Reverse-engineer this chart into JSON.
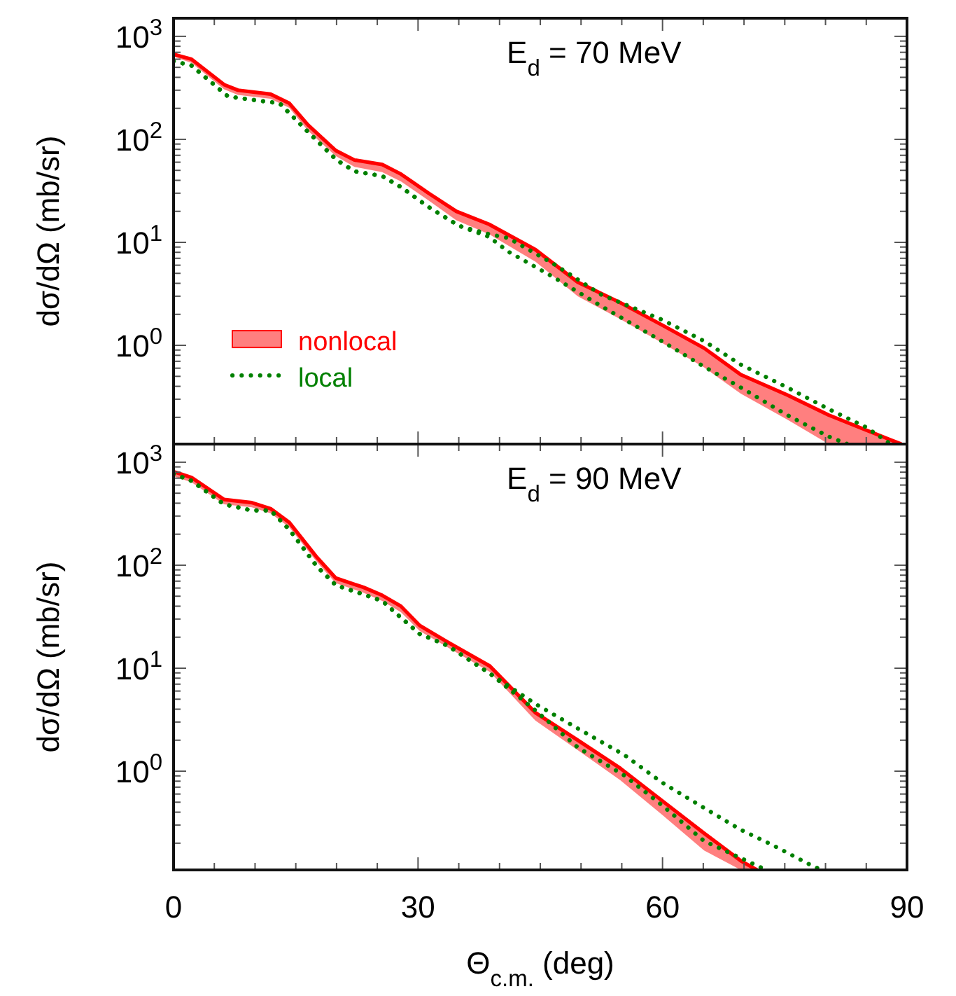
{
  "chart_data": [
    {
      "type": "line",
      "annotations": [
        "E$_{d}$ = 70 MeV"
      ],
      "ylabel": "dσ/dΩ  (mb/sr)",
      "log": true,
      "legend": "left",
      "tick_labels": "y",
      "xlim": [
        0,
        90
      ],
      "xticks": [
        0,
        {
          "value": 5,
          "label": null
        },
        {
          "value": 10,
          "label": null
        },
        {
          "value": 15,
          "label": null
        },
        {
          "value": 20,
          "label": null
        },
        {
          "value": 25,
          "label": null
        },
        30,
        {
          "value": 35,
          "label": null
        },
        {
          "value": 40,
          "label": null
        },
        {
          "value": 45,
          "label": null
        },
        {
          "value": 50,
          "label": null
        },
        {
          "value": 55,
          "label": null
        },
        60,
        {
          "value": 65,
          "label": null
        },
        {
          "value": 70,
          "label": null
        },
        {
          "value": 75,
          "label": null
        },
        {
          "value": 80,
          "label": null
        },
        {
          "value": 85,
          "label": null
        },
        90
      ],
      "ylim": [
        0.11,
        1500
      ],
      "yticks": [
        {
          "value": 1,
          "label": "10$^{0}$"
        },
        {
          "value": 10,
          "label": "10$^{1}$"
        },
        {
          "value": 100,
          "label": "10$^{2}$"
        },
        {
          "value": 1000,
          "label": "10$^{3}$"
        }
      ],
      "series": [
        {
          "name": "nonlocal",
          "color": "#ff0000",
          "line_style": "solid",
          "x": [
            0,
            2.2,
            6.2,
            7.9,
            11.9,
            14.2,
            16.5,
            19.9,
            22.2,
            25.6,
            27.9,
            31.3,
            34.7,
            38.7,
            44.4,
            49.6,
            54.8,
            59.9,
            65.1,
            69.6,
            75.3,
            80.4,
            85,
            89.3
          ],
          "values": [
            670,
            600,
            340,
            300,
            275,
            224,
            138,
            78,
            63,
            57,
            46,
            30,
            20,
            15,
            8.5,
            4.1,
            2.6,
            1.58,
            0.94,
            0.52,
            0.33,
            0.21,
            0.15,
            0.11
          ],
          "lower": [
            636,
            552,
            306,
            270,
            248,
            202,
            121,
            69,
            54,
            48,
            39,
            25.5,
            16.4,
            12,
            6.5,
            3.0,
            1.8,
            1.06,
            0.61,
            0.34,
            0.19,
            0.11,
            0.11,
            0.11
          ],
          "upper": [
            670,
            600,
            340,
            300,
            275,
            224,
            138,
            78,
            63,
            57,
            46,
            30,
            20,
            15,
            8.5,
            4.1,
            2.6,
            1.58,
            0.94,
            0.52,
            0.33,
            0.21,
            0.15,
            0.11
          ]
        },
        {
          "name": "local",
          "color": "#008000",
          "line_style": "dotted",
          "x": [
            0,
            2.2,
            6.7,
            10,
            13,
            16.5,
            20,
            22.2,
            25.6,
            28,
            31.3,
            35,
            38.7,
            41.1,
            46.6,
            52.5,
            59.9,
            65.1,
            69.6,
            75.3,
            80.4,
            82.7
          ],
          "values": [
            575,
            520,
            260,
            240,
            224,
            118,
            63,
            49,
            44,
            34,
            22,
            14.5,
            11.3,
            8.1,
            4.6,
            2.4,
            1.1,
            0.62,
            0.39,
            0.21,
            0.13,
            0.11
          ]
        },
        {
          "color": "#008000",
          "line_style": "dotted",
          "x": [
            0,
            2.2,
            6.7,
            10,
            13,
            16.5,
            20,
            22.2,
            25.6,
            28,
            31.3,
            35,
            38.7,
            41.1,
            46.6,
            52.5,
            59.9,
            65.1,
            69.6,
            75.3,
            80.4,
            85,
            88
          ],
          "values": [
            575,
            520,
            260,
            240,
            224,
            118,
            63,
            49,
            44,
            34,
            22,
            14.5,
            12,
            11,
            6.2,
            3.1,
            1.78,
            1.1,
            0.65,
            0.39,
            0.24,
            0.16,
            0.11
          ]
        }
      ]
    },
    {
      "type": "line",
      "annotations": [
        "E$_{d}$ = 90 MeV"
      ],
      "xlabel": "Θ$_{c.m.}$ (deg)",
      "ylabel": "dσ/dΩ  (mb/sr)",
      "log": true,
      "xlim": [
        0,
        90
      ],
      "xticks": [
        0,
        {
          "value": 5,
          "label": null
        },
        {
          "value": 10,
          "label": null
        },
        {
          "value": 15,
          "label": null
        },
        {
          "value": 20,
          "label": null
        },
        {
          "value": 25,
          "label": null
        },
        30,
        {
          "value": 35,
          "label": null
        },
        {
          "value": 40,
          "label": null
        },
        {
          "value": 45,
          "label": null
        },
        {
          "value": 50,
          "label": null
        },
        {
          "value": 55,
          "label": null
        },
        60,
        {
          "value": 65,
          "label": null
        },
        {
          "value": 70,
          "label": null
        },
        {
          "value": 75,
          "label": null
        },
        {
          "value": 80,
          "label": null
        },
        {
          "value": 85,
          "label": null
        },
        90
      ],
      "ylim": [
        0.11,
        1500
      ],
      "yticks": [
        {
          "value": 1,
          "label": "10$^{0}$"
        },
        {
          "value": 10,
          "label": "10$^{1}$"
        },
        {
          "value": 100,
          "label": "10$^{2}$"
        },
        {
          "value": 1000,
          "label": "10$^{3}$"
        }
      ],
      "series": [
        {
          "color": "#ff0000",
          "line_style": "solid",
          "x": [
            0,
            2.2,
            6.2,
            9.6,
            11.9,
            14.2,
            17.6,
            19.9,
            23.3,
            25.6,
            27.9,
            30.2,
            33.6,
            38.8,
            44.4,
            49.6,
            54.8,
            59.9,
            65.1,
            69.6,
            71.6
          ],
          "values": [
            810,
            710,
            435,
            405,
            354,
            260,
            119,
            75,
            61,
            51,
            40,
            26,
            18,
            10.5,
            3.7,
            2.0,
            1.07,
            0.52,
            0.25,
            0.135,
            0.11
          ],
          "lower": [
            730,
            640,
            390,
            365,
            320,
            234,
            107,
            67,
            54,
            45,
            35,
            23,
            16,
            9.2,
            3.1,
            1.6,
            0.82,
            0.38,
            0.17,
            0.11,
            0.11
          ],
          "upper": [
            810,
            710,
            435,
            405,
            354,
            260,
            119,
            75,
            61,
            51,
            40,
            26,
            18,
            10.5,
            3.7,
            2.0,
            1.07,
            0.52,
            0.25,
            0.135,
            0.11
          ]
        },
        {
          "color": "#008000",
          "line_style": "dotted",
          "x": [
            0,
            2.2,
            6.2,
            9.6,
            11.9,
            14.2,
            17.6,
            19.9,
            23.3,
            25.6,
            27.9,
            30.2,
            33.6,
            38.8,
            44.4,
            49.6,
            55.3,
            59.9,
            65.1,
            72.2,
            73
          ],
          "values": [
            770,
            660,
            390,
            340,
            340,
            222,
            97,
            64,
            52,
            45,
            31,
            21.5,
            16.6,
            8.9,
            3.9,
            1.7,
            0.91,
            0.47,
            0.21,
            0.115,
            0.11
          ]
        },
        {
          "color": "#008000",
          "line_style": "dotted",
          "x": [
            0,
            2.2,
            6.2,
            9.6,
            11.9,
            14.2,
            17.6,
            19.9,
            23.3,
            25.6,
            27.9,
            30.2,
            33.6,
            38.8,
            44.4,
            49.6,
            55.3,
            59.9,
            65.1,
            69.6,
            73.6,
            77.9,
            79.5
          ],
          "values": [
            770,
            660,
            390,
            340,
            340,
            222,
            97,
            64,
            52,
            45,
            31,
            21.5,
            16.6,
            8.9,
            4.5,
            2.6,
            1.44,
            0.78,
            0.44,
            0.27,
            0.19,
            0.126,
            0.11
          ]
        }
      ]
    }
  ]
}
